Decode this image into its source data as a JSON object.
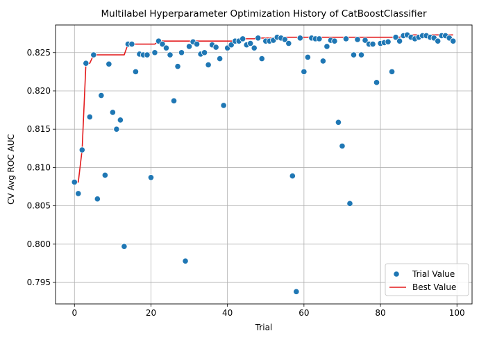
{
  "chart_data": {
    "type": "scatter",
    "title": "Multilabel Hyperparameter Optimization History of CatBoostClassifier",
    "xlabel": "Trial",
    "ylabel": "CV Avg ROC AUC",
    "xlim": [
      -4.95,
      103.95
    ],
    "ylim": [
      0.7922,
      0.8286
    ],
    "xticks": [
      0,
      20,
      40,
      60,
      80,
      100
    ],
    "yticks": [
      0.795,
      0.8,
      0.805,
      0.81,
      0.815,
      0.82,
      0.825
    ],
    "ytick_labels": [
      "0.795",
      "0.800",
      "0.805",
      "0.810",
      "0.815",
      "0.820",
      "0.825"
    ],
    "grid": true,
    "legend_position": "lower-right",
    "colors": {
      "trial": "#1f77b4",
      "best": "#e31a1c",
      "grid": "#b0b0b0"
    },
    "series": [
      {
        "name": "Trial Value",
        "kind": "scatter",
        "x": [
          0,
          1,
          2,
          3,
          4,
          5,
          6,
          7,
          8,
          9,
          10,
          11,
          12,
          13,
          14,
          15,
          16,
          17,
          18,
          19,
          20,
          21,
          22,
          23,
          24,
          25,
          26,
          27,
          28,
          29,
          30,
          31,
          32,
          33,
          34,
          35,
          36,
          37,
          38,
          39,
          40,
          41,
          42,
          43,
          44,
          45,
          46,
          47,
          48,
          49,
          50,
          51,
          52,
          53,
          54,
          55,
          56,
          57,
          58,
          59,
          60,
          61,
          62,
          63,
          64,
          65,
          66,
          67,
          68,
          69,
          70,
          71,
          72,
          73,
          74,
          75,
          76,
          77,
          78,
          79,
          80,
          81,
          82,
          83,
          84,
          85,
          86,
          87,
          88,
          89,
          90,
          91,
          92,
          93,
          94,
          95,
          96,
          97,
          98,
          99
        ],
        "y": [
          0.8081,
          0.8066,
          0.8123,
          0.8236,
          0.8166,
          0.8247,
          0.8059,
          0.8194,
          0.809,
          0.8235,
          0.8172,
          0.815,
          0.8162,
          0.7997,
          0.8261,
          0.8261,
          0.8225,
          0.8248,
          0.8247,
          0.8247,
          0.8087,
          0.825,
          0.8265,
          0.8261,
          0.8256,
          0.8247,
          0.8187,
          0.8232,
          0.825,
          0.7978,
          0.8258,
          0.8264,
          0.8261,
          0.8248,
          0.825,
          0.8234,
          0.826,
          0.8257,
          0.8242,
          0.8181,
          0.8256,
          0.826,
          0.8265,
          0.8265,
          0.8268,
          0.826,
          0.8262,
          0.8256,
          0.8269,
          0.8242,
          0.8265,
          0.8265,
          0.8266,
          0.827,
          0.8269,
          0.8267,
          0.8262,
          0.8089,
          0.7938,
          0.8269,
          0.8225,
          0.8244,
          0.8269,
          0.8268,
          0.8268,
          0.8239,
          0.8258,
          0.8266,
          0.8265,
          0.8159,
          0.8128,
          0.8268,
          0.8053,
          0.8247,
          0.8267,
          0.8247,
          0.8266,
          0.8261,
          0.8261,
          0.8211,
          0.8262,
          0.8263,
          0.8264,
          0.8225,
          0.827,
          0.8265,
          0.8272,
          0.8273,
          0.827,
          0.8268,
          0.827,
          0.8272,
          0.8272,
          0.827,
          0.8269,
          0.8265,
          0.8272,
          0.8272,
          0.8269,
          0.8265
        ]
      },
      {
        "name": "Best Value",
        "kind": "line",
        "x": [
          0,
          1,
          2,
          3,
          4,
          5,
          6,
          7,
          8,
          9,
          10,
          11,
          12,
          13,
          14,
          15,
          16,
          17,
          18,
          19,
          20,
          21,
          22,
          23,
          24,
          25,
          26,
          27,
          28,
          29,
          30,
          31,
          32,
          33,
          34,
          35,
          36,
          37,
          38,
          39,
          40,
          41,
          42,
          43,
          44,
          45,
          46,
          47,
          48,
          49,
          50,
          51,
          52,
          53,
          54,
          55,
          56,
          57,
          58,
          59,
          60,
          61,
          62,
          63,
          64,
          65,
          66,
          67,
          68,
          69,
          70,
          71,
          72,
          73,
          74,
          75,
          76,
          77,
          78,
          79,
          80,
          81,
          82,
          83,
          84,
          85,
          86,
          87,
          88,
          89,
          90,
          91,
          92,
          93,
          94,
          95,
          96,
          97,
          98,
          99
        ],
        "y": [
          0.8081,
          0.8081,
          0.8123,
          0.8236,
          0.8236,
          0.8247,
          0.8247,
          0.8247,
          0.8247,
          0.8247,
          0.8247,
          0.8247,
          0.8247,
          0.8247,
          0.8261,
          0.8261,
          0.8261,
          0.8261,
          0.8261,
          0.8261,
          0.8261,
          0.8261,
          0.8265,
          0.8265,
          0.8265,
          0.8265,
          0.8265,
          0.8265,
          0.8265,
          0.8265,
          0.8265,
          0.8265,
          0.8265,
          0.8265,
          0.8265,
          0.8265,
          0.8265,
          0.8265,
          0.8265,
          0.8265,
          0.8265,
          0.8265,
          0.8265,
          0.8265,
          0.8268,
          0.8268,
          0.8268,
          0.8268,
          0.8269,
          0.8269,
          0.8269,
          0.8269,
          0.8269,
          0.827,
          0.827,
          0.827,
          0.827,
          0.827,
          0.827,
          0.827,
          0.827,
          0.827,
          0.827,
          0.827,
          0.827,
          0.827,
          0.827,
          0.827,
          0.827,
          0.827,
          0.827,
          0.827,
          0.827,
          0.827,
          0.827,
          0.827,
          0.827,
          0.827,
          0.827,
          0.827,
          0.827,
          0.827,
          0.827,
          0.827,
          0.827,
          0.827,
          0.8272,
          0.8273,
          0.8273,
          0.8273,
          0.8273,
          0.8273,
          0.8273,
          0.8273,
          0.8273,
          0.8273,
          0.8273,
          0.8273,
          0.8273,
          0.8273
        ]
      }
    ]
  }
}
